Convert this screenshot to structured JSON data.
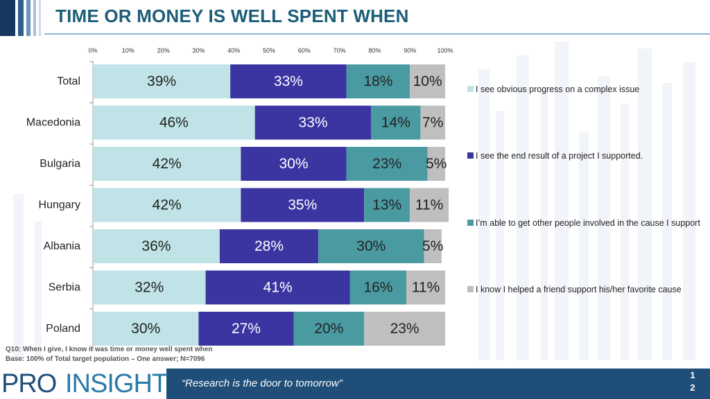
{
  "title": "TIME OR MONEY IS WELL SPENT WHEN",
  "colors": {
    "title": "#1b5e78",
    "series": [
      "#bfe3e6",
      "#3b35a2",
      "#4a9aa2",
      "#bfbfbf"
    ],
    "footer": "#1f4e79"
  },
  "chart_data": {
    "type": "bar",
    "orientation": "horizontal",
    "stacked": "percent",
    "categories": [
      "Total",
      "Macedonia",
      "Bulgaria",
      "Hungary",
      "Albania",
      "Serbia",
      "Poland"
    ],
    "x_ticks": [
      "0%",
      "10%",
      "20%",
      "30%",
      "40%",
      "50%",
      "60%",
      "70%",
      "80%",
      "90%",
      "100%"
    ],
    "xlim": [
      0,
      100
    ],
    "series": [
      {
        "name": "I see obvious progress on a complex issue",
        "values": [
          39,
          46,
          42,
          42,
          36,
          32,
          30
        ]
      },
      {
        "name": "I see the end result of a project I supported.",
        "values": [
          33,
          33,
          30,
          35,
          28,
          41,
          27
        ]
      },
      {
        "name": "I’m able to get other people involved in the cause I support",
        "values": [
          18,
          14,
          23,
          13,
          30,
          16,
          20
        ]
      },
      {
        "name": "I know I helped a friend support his/her favorite cause",
        "values": [
          10,
          7,
          5,
          11,
          5,
          11,
          23
        ]
      }
    ],
    "legend_position": "right"
  },
  "footnote": {
    "question": "Q10: When I give, I know it was time or money well spent when",
    "base": "Base: 100% of Total target population – One answer; N=7096"
  },
  "footer": {
    "logo_pro": "PRO",
    "logo_insight": "INSIGHT",
    "tagline": "“Research is the door to tomorrow”",
    "page_digits": [
      "1",
      "2"
    ]
  }
}
